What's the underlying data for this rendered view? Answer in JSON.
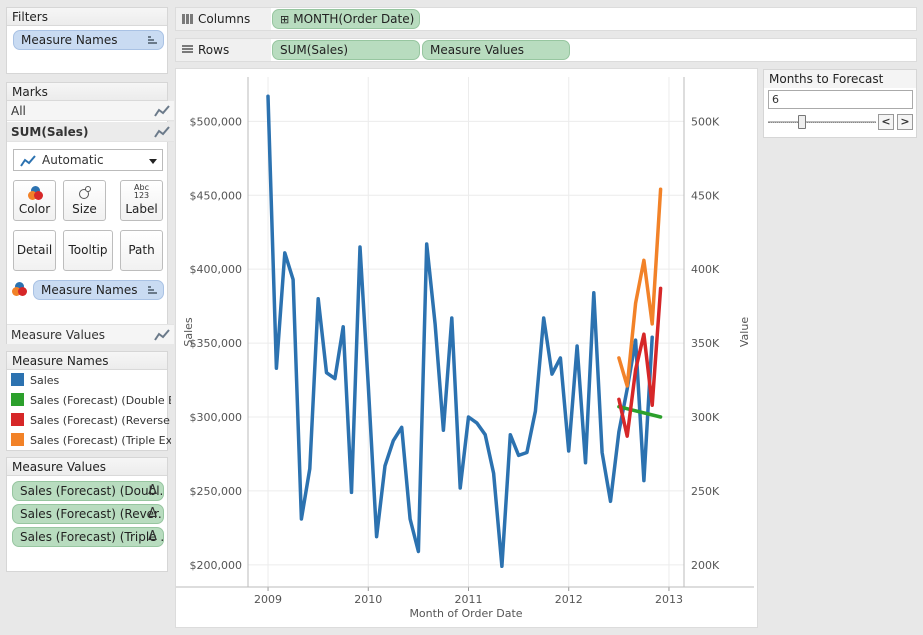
{
  "filters": {
    "title": "Filters",
    "pills": [
      {
        "label": "Measure Names"
      }
    ]
  },
  "marks": {
    "title": "Marks",
    "rows": [
      {
        "label": "All",
        "icon": "line-chart-icon"
      },
      {
        "label": "SUM(Sales)",
        "icon": "line-chart-icon"
      }
    ],
    "mark_type": "Automatic",
    "buttons": [
      {
        "label": "Color",
        "icon": "color-icon"
      },
      {
        "label": "Size",
        "icon": "size-icon"
      },
      {
        "label": "Label",
        "icon": "label-icon",
        "icon_text": "Abc\n123"
      },
      {
        "label": "Detail",
        "icon": ""
      },
      {
        "label": "Tooltip",
        "icon": ""
      },
      {
        "label": "Path",
        "icon": ""
      }
    ],
    "color_pill": "Measure Names",
    "measure_values_row": "Measure Values"
  },
  "legend": {
    "title": "Measure Names",
    "items": [
      {
        "label": "Sales",
        "color": "#2c72b0"
      },
      {
        "label": "Sales (Forecast) (Double E...",
        "color": "#2ca02c"
      },
      {
        "label": "Sales (Forecast) (Reverse ...",
        "color": "#d62728"
      },
      {
        "label": "Sales (Forecast) (Triple Ex...",
        "color": "#f28228"
      }
    ]
  },
  "measure_values": {
    "title": "Measure Values",
    "pills": [
      {
        "label": "Sales (Forecast) (Doubl..",
        "delta": "Δ"
      },
      {
        "label": "Sales (Forecast) (Rever..",
        "delta": "Δ"
      },
      {
        "label": "Sales (Forecast) (Triple ..",
        "delta": "Δ"
      }
    ]
  },
  "shelves": {
    "columns_label": "Columns",
    "columns_pill": "MONTH(Order Date)",
    "columns_pill_icon": "⊞",
    "rows_label": "Rows",
    "rows_pills": [
      "SUM(Sales)",
      "Measure Values"
    ]
  },
  "parameter": {
    "title": "Months to Forecast",
    "value": "6",
    "slider_fraction": 0.3,
    "prev_symbol": "<",
    "next_symbol": ">"
  },
  "chart_data": {
    "type": "line",
    "xlabel": "Month of Order Date",
    "ylabel_left": "Sales",
    "ylabel_right": "Value",
    "x_ticks": [
      "2009",
      "2010",
      "2011",
      "2012",
      "2013"
    ],
    "y_left_ticks": [
      "$500,000",
      "$450,000",
      "$400,000",
      "$350,000",
      "$300,000",
      "$250,000",
      "$200,000"
    ],
    "y_right_ticks": [
      "500K",
      "450K",
      "400K",
      "350K",
      "300K",
      "250K",
      "200K"
    ],
    "y_range": [
      185000,
      530000
    ],
    "x_range": [
      2008.8,
      2013.15
    ],
    "grid": true,
    "series": [
      {
        "name": "Sales",
        "color": "#2c72b0",
        "x": [
          2009.0,
          2009.083,
          2009.167,
          2009.25,
          2009.333,
          2009.417,
          2009.5,
          2009.583,
          2009.667,
          2009.75,
          2009.833,
          2009.917,
          2010.0,
          2010.083,
          2010.167,
          2010.25,
          2010.333,
          2010.417,
          2010.5,
          2010.583,
          2010.667,
          2010.75,
          2010.833,
          2010.917,
          2011.0,
          2011.083,
          2011.167,
          2011.25,
          2011.333,
          2011.417,
          2011.5,
          2011.583,
          2011.667,
          2011.75,
          2011.833,
          2011.917,
          2012.0,
          2012.083,
          2012.167,
          2012.25,
          2012.333,
          2012.417,
          2012.5,
          2012.583,
          2012.667,
          2012.75,
          2012.833,
          2012.917
        ],
        "values": [
          517000,
          333000,
          411000,
          393000,
          231000,
          265000,
          380000,
          330000,
          326000,
          361000,
          249000,
          415000,
          321000,
          219000,
          267000,
          284000,
          293000,
          231000,
          209000,
          417000,
          363000,
          291000,
          367000,
          252000,
          300000,
          296000,
          288000,
          262000,
          199000,
          288000,
          274000,
          276000,
          304000,
          367000,
          329000,
          340000,
          277000,
          348000,
          269000,
          384000,
          276000,
          243000,
          290000,
          319000,
          352000,
          257000,
          354000,
          null
        ]
      },
      {
        "name": "Sales (Forecast) (Double E...",
        "color": "#2ca02c",
        "x": [
          2012.5,
          2012.917
        ],
        "values": [
          307000,
          300000
        ]
      },
      {
        "name": "Sales (Forecast) (Reverse ...",
        "color": "#d62728",
        "x": [
          2012.5,
          2012.583,
          2012.667,
          2012.75,
          2012.833,
          2012.917
        ],
        "values": [
          312000,
          287000,
          332000,
          356000,
          308000,
          387000
        ]
      },
      {
        "name": "Sales (Forecast) (Triple Ex...",
        "color": "#f28228",
        "x": [
          2012.5,
          2012.583,
          2012.667,
          2012.75,
          2012.833,
          2012.917
        ],
        "values": [
          340000,
          321000,
          377000,
          406000,
          363000,
          454000
        ]
      }
    ]
  }
}
